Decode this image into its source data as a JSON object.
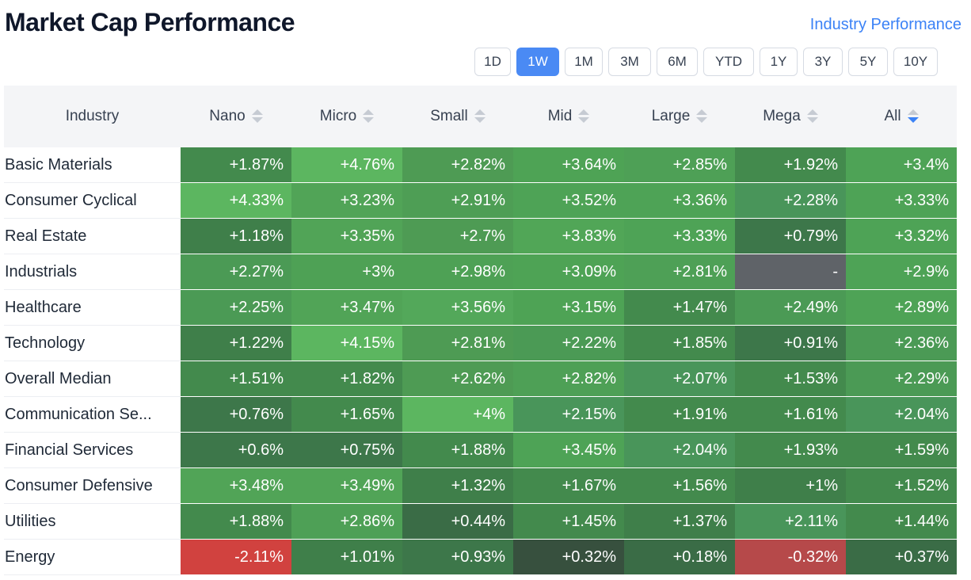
{
  "header": {
    "title": "Market Cap Performance",
    "link_label": "Industry Performance"
  },
  "periods": [
    {
      "label": "1D",
      "active": false
    },
    {
      "label": "1W",
      "active": true
    },
    {
      "label": "1M",
      "active": false
    },
    {
      "label": "3M",
      "active": false
    },
    {
      "label": "6M",
      "active": false
    },
    {
      "label": "YTD",
      "active": false
    },
    {
      "label": "1Y",
      "active": false
    },
    {
      "label": "3Y",
      "active": false
    },
    {
      "label": "5Y",
      "active": false
    },
    {
      "label": "10Y",
      "active": false
    }
  ],
  "table": {
    "first_header": "Industry",
    "columns": [
      {
        "label": "Nano",
        "sort": "none"
      },
      {
        "label": "Micro",
        "sort": "none"
      },
      {
        "label": "Small",
        "sort": "none"
      },
      {
        "label": "Mid",
        "sort": "none"
      },
      {
        "label": "Large",
        "sort": "none"
      },
      {
        "label": "Mega",
        "sort": "none"
      },
      {
        "label": "All",
        "sort": "desc"
      }
    ],
    "rows": [
      {
        "name": "Basic Materials",
        "values": [
          "+1.87%",
          "+4.76%",
          "+2.82%",
          "+3.64%",
          "+2.85%",
          "+1.92%",
          "+3.4%"
        ],
        "colors": [
          "#438a4d",
          "#5cb660",
          "#4e9b54",
          "#4ea355",
          "#4ea056",
          "#438a4d",
          "#4ea356"
        ]
      },
      {
        "name": "Consumer Cyclical",
        "values": [
          "+4.33%",
          "+3.23%",
          "+2.91%",
          "+3.52%",
          "+3.36%",
          "+2.28%",
          "+3.33%"
        ],
        "colors": [
          "#5cb660",
          "#51a457",
          "#4e9e55",
          "#4ea356",
          "#4ea356",
          "#49955a",
          "#4ea356"
        ]
      },
      {
        "name": "Real Estate",
        "values": [
          "+1.18%",
          "+3.35%",
          "+2.7%",
          "+3.83%",
          "+3.33%",
          "+0.79%",
          "+3.32%"
        ],
        "colors": [
          "#3f7f4a",
          "#51a457",
          "#4e9b54",
          "#51a657",
          "#4ea356",
          "#3d774a",
          "#4ea356"
        ]
      },
      {
        "name": "Industrials",
        "values": [
          "+2.27%",
          "+3%",
          "+2.98%",
          "+3.09%",
          "+2.81%",
          "-",
          "+2.9%"
        ],
        "colors": [
          "#4b9a55",
          "#4ea155",
          "#4ea155",
          "#4ea355",
          "#4ea056",
          "#5f6368",
          "#4ea356"
        ]
      },
      {
        "name": "Healthcare",
        "values": [
          "+2.25%",
          "+3.47%",
          "+3.56%",
          "+3.15%",
          "+1.47%",
          "+2.49%",
          "+2.89%"
        ],
        "colors": [
          "#4b9a55",
          "#51a457",
          "#53a85a",
          "#4ea355",
          "#438a4d",
          "#4b9a55",
          "#4ea356"
        ]
      },
      {
        "name": "Technology",
        "values": [
          "+1.22%",
          "+4.15%",
          "+2.81%",
          "+2.22%",
          "+1.85%",
          "+0.91%",
          "+2.36%"
        ],
        "colors": [
          "#3f7f4a",
          "#5cb660",
          "#4e9b54",
          "#4b9a55",
          "#438a4d",
          "#3d774a",
          "#4b9a55"
        ]
      },
      {
        "name": "Overall Median",
        "values": [
          "+1.51%",
          "+1.82%",
          "+2.62%",
          "+2.82%",
          "+2.07%",
          "+1.53%",
          "+2.29%"
        ],
        "colors": [
          "#438a4d",
          "#438a4d",
          "#4e9b54",
          "#4ea056",
          "#49955a",
          "#438a4d",
          "#4b9a55"
        ]
      },
      {
        "name": "Communication Se...",
        "values": [
          "+0.76%",
          "+1.65%",
          "+4%",
          "+2.15%",
          "+1.91%",
          "+1.61%",
          "+2.04%"
        ],
        "colors": [
          "#3d774a",
          "#438a4d",
          "#5cb660",
          "#49955a",
          "#438a4d",
          "#438a4d",
          "#49955a"
        ]
      },
      {
        "name": "Financial Services",
        "values": [
          "+0.6%",
          "+0.75%",
          "+1.88%",
          "+3.45%",
          "+2.04%",
          "+1.93%",
          "+1.59%"
        ],
        "colors": [
          "#3d774a",
          "#3d774a",
          "#438a4d",
          "#4ea356",
          "#49955a",
          "#438a4d",
          "#438a4d"
        ]
      },
      {
        "name": "Consumer Defensive",
        "values": [
          "+3.48%",
          "+3.49%",
          "+1.32%",
          "+1.67%",
          "+1.56%",
          "+1%",
          "+1.52%"
        ],
        "colors": [
          "#51a457",
          "#51a457",
          "#3f7f4a",
          "#438a4d",
          "#438a4d",
          "#3f7f4a",
          "#438a4d"
        ]
      },
      {
        "name": "Utilities",
        "values": [
          "+1.88%",
          "+2.86%",
          "+0.44%",
          "+1.45%",
          "+1.37%",
          "+2.11%",
          "+1.44%"
        ],
        "colors": [
          "#438a4d",
          "#4ea056",
          "#3a6c46",
          "#438a4d",
          "#3f7f4a",
          "#49955a",
          "#438a4d"
        ]
      },
      {
        "name": "Energy",
        "values": [
          "-2.11%",
          "+1.01%",
          "+0.93%",
          "+0.32%",
          "+0.18%",
          "-0.32%",
          "+0.37%"
        ],
        "colors": [
          "#d1423f",
          "#3f7f4a",
          "#3d774a",
          "#37503e",
          "#3a6c46",
          "#b6494a",
          "#3a6c46"
        ]
      }
    ]
  }
}
